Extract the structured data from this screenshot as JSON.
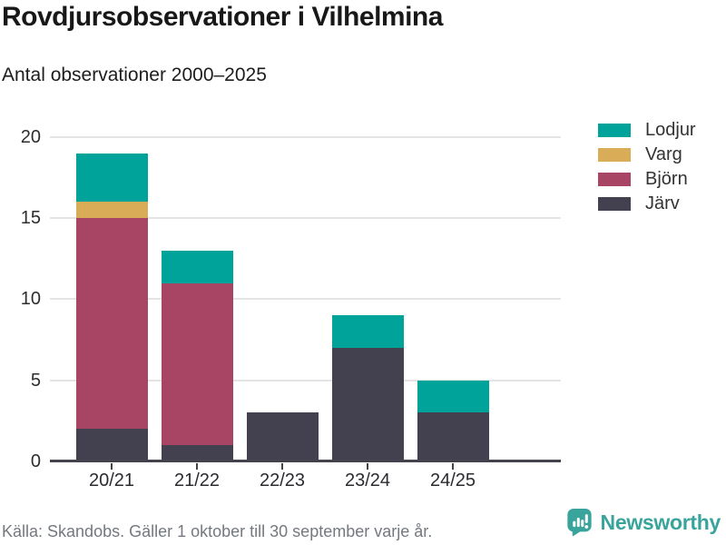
{
  "header": {
    "title": "Rovdjursobservationer i Vilhelmina",
    "subtitle": "Antal observationer 2000–2025"
  },
  "chart_data": {
    "type": "bar",
    "stacked": true,
    "title": "Rovdjursobservationer i Vilhelmina",
    "subtitle": "Antal observationer 2000–2025",
    "categories": [
      "20/21",
      "21/22",
      "22/23",
      "23/24",
      "24/25"
    ],
    "series": [
      {
        "name": "Järv",
        "color": "#434050",
        "values": [
          2,
          1,
          3,
          7,
          3
        ]
      },
      {
        "name": "Björn",
        "color": "#a84565",
        "values": [
          13,
          10,
          0,
          0,
          0
        ]
      },
      {
        "name": "Varg",
        "color": "#d9ad57",
        "values": [
          1,
          0,
          0,
          0,
          0
        ]
      },
      {
        "name": "Lodjur",
        "color": "#00a39a",
        "values": [
          3,
          2,
          0,
          2,
          2
        ]
      }
    ],
    "totals": [
      19,
      13,
      3,
      9,
      5
    ],
    "legend_order": [
      "Lodjur",
      "Varg",
      "Björn",
      "Järv"
    ],
    "legend_position": "top-right",
    "xlabel": "",
    "ylabel": "",
    "ylim": [
      0,
      20
    ],
    "yticks": [
      0,
      5,
      10,
      15,
      20
    ],
    "grid": true,
    "grid_color": "#e4e4e4",
    "axis_color": "#45424d"
  },
  "footer": {
    "source": "Källa: Skandobs. Gäller 1 oktober till 30 september varje år.",
    "brand": "Newsworthy",
    "brand_color": "#38a49c"
  },
  "icons": {
    "brand_logo": "newsworthy-bubble-bar-chart-exclamation-icon"
  }
}
